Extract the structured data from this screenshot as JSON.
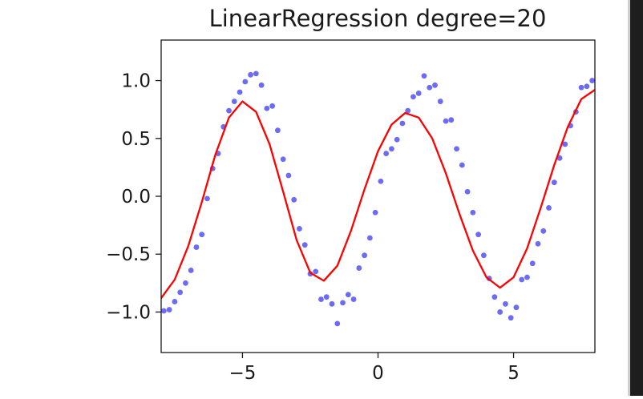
{
  "chart_data": {
    "type": "scatter",
    "title": "LinearRegression degree=20",
    "xlabel": "",
    "ylabel": "",
    "xlim": [
      -8,
      8
    ],
    "ylim": [
      -1.35,
      1.35
    ],
    "xticks": [
      -5,
      0,
      5
    ],
    "xtick_labels": [
      "−5",
      "0",
      "5"
    ],
    "yticks": [
      1.0,
      0.5,
      0.0,
      -0.5,
      -1.0
    ],
    "ytick_labels": [
      "1.0",
      "0.5",
      "0.0",
      "−0.5",
      "−1.0"
    ],
    "grid": false,
    "series": [
      {
        "kind": "scatter",
        "color": "#5b5bf5",
        "x": [
          -7.9,
          -7.7,
          -7.5,
          -7.3,
          -7.1,
          -6.9,
          -6.7,
          -6.5,
          -6.3,
          -6.1,
          -5.9,
          -5.7,
          -5.5,
          -5.3,
          -5.1,
          -4.9,
          -4.7,
          -4.5,
          -4.3,
          -4.1,
          -3.9,
          -3.7,
          -3.5,
          -3.3,
          -3.1,
          -2.9,
          -2.7,
          -2.5,
          -2.3,
          -2.1,
          -1.9,
          -1.7,
          -1.5,
          -1.3,
          -1.1,
          -0.9,
          -0.7,
          -0.5,
          -0.3,
          -0.1,
          0.1,
          0.3,
          0.5,
          0.7,
          0.9,
          1.1,
          1.3,
          1.5,
          1.7,
          1.9,
          2.1,
          2.3,
          2.5,
          2.7,
          2.9,
          3.1,
          3.3,
          3.5,
          3.7,
          3.9,
          4.1,
          4.3,
          4.5,
          4.7,
          4.9,
          5.1,
          5.3,
          5.5,
          5.7,
          5.9,
          6.1,
          6.3,
          6.5,
          6.7,
          6.9,
          7.1,
          7.3,
          7.5,
          7.7,
          7.9
        ],
        "y": [
          -0.99,
          -0.98,
          -0.91,
          -0.83,
          -0.75,
          -0.64,
          -0.44,
          -0.33,
          -0.02,
          0.24,
          0.37,
          0.6,
          0.74,
          0.82,
          0.9,
          0.99,
          1.05,
          1.06,
          0.96,
          0.76,
          0.78,
          0.57,
          0.32,
          0.18,
          -0.03,
          -0.28,
          -0.42,
          -0.67,
          -0.65,
          -0.89,
          -0.87,
          -0.93,
          -1.1,
          -0.92,
          -0.85,
          -0.89,
          -0.62,
          -0.51,
          -0.36,
          -0.14,
          0.13,
          0.37,
          0.41,
          0.49,
          0.63,
          0.74,
          0.86,
          0.89,
          1.04,
          0.94,
          0.96,
          0.82,
          0.65,
          0.66,
          0.41,
          0.27,
          0.04,
          -0.14,
          -0.33,
          -0.51,
          -0.71,
          -0.87,
          -1.0,
          -0.93,
          -1.05,
          -0.96,
          -0.72,
          -0.7,
          -0.58,
          -0.41,
          -0.3,
          -0.1,
          0.12,
          0.33,
          0.45,
          0.61,
          0.73,
          0.94,
          0.95,
          1.0
        ]
      },
      {
        "kind": "line",
        "color": "#ff0000",
        "x": [
          -8.0,
          -7.5,
          -7.0,
          -6.5,
          -6.0,
          -5.5,
          -5.0,
          -4.5,
          -4.0,
          -3.5,
          -3.0,
          -2.5,
          -2.0,
          -1.5,
          -1.0,
          -0.5,
          0.0,
          0.5,
          1.0,
          1.5,
          2.0,
          2.5,
          3.0,
          3.5,
          4.0,
          4.5,
          5.0,
          5.5,
          6.0,
          6.5,
          7.0,
          7.5,
          8.0
        ],
        "y": [
          -0.88,
          -0.72,
          -0.43,
          -0.05,
          0.36,
          0.68,
          0.82,
          0.73,
          0.45,
          0.04,
          -0.38,
          -0.66,
          -0.73,
          -0.6,
          -0.3,
          0.06,
          0.39,
          0.62,
          0.72,
          0.68,
          0.5,
          0.2,
          -0.15,
          -0.47,
          -0.7,
          -0.79,
          -0.7,
          -0.45,
          -0.1,
          0.27,
          0.6,
          0.84,
          0.92
        ]
      }
    ]
  }
}
